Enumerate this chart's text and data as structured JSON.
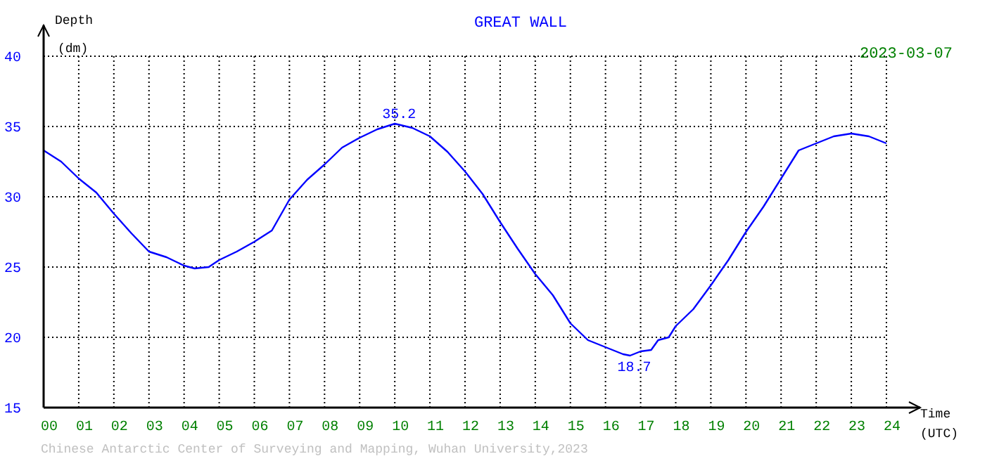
{
  "chart_data": {
    "type": "line",
    "title": "GREAT WALL",
    "subtitle": "2023-03-07",
    "xlabel": "Time (UTC)",
    "ylabel": "Depth (dm)",
    "xlim": [
      0,
      24
    ],
    "xticks": [
      {
        "value": 0,
        "label": "00"
      },
      {
        "value": 1,
        "label": "01"
      },
      {
        "value": 2,
        "label": "02"
      },
      {
        "value": 3,
        "label": "03"
      },
      {
        "value": 4,
        "label": "04"
      },
      {
        "value": 5,
        "label": "05"
      },
      {
        "value": 6,
        "label": "06"
      },
      {
        "value": 7,
        "label": "07"
      },
      {
        "value": 8,
        "label": "08"
      },
      {
        "value": 9,
        "label": "09"
      },
      10,
      11,
      12,
      13,
      14,
      15,
      16,
      17,
      18,
      19,
      20,
      21,
      22,
      23,
      24
    ],
    "ylim": [
      15,
      40
    ],
    "yticks": [
      15,
      20,
      25,
      30,
      35,
      40
    ],
    "grid": true,
    "marker": "none",
    "line_style": "solid",
    "x": [
      0,
      0.5,
      1,
      1.5,
      2,
      2.5,
      3,
      3.5,
      4,
      4.3,
      4.7,
      5,
      5.5,
      6,
      6.5,
      7,
      7.5,
      8,
      8.5,
      9,
      9.5,
      10,
      10.5,
      11,
      11.5,
      12,
      12.5,
      13,
      13.5,
      14,
      14.5,
      15,
      15.5,
      16,
      16.5,
      16.7,
      17,
      17.3,
      17.5,
      17.8,
      18,
      18.5,
      19,
      19.5,
      20,
      20.5,
      21,
      21.5,
      22,
      22.5,
      23,
      23.5,
      24
    ],
    "series": [
      {
        "color": "#0000ff",
        "values": [
          33.3,
          32.5,
          31.3,
          30.3,
          28.8,
          27.4,
          26.1,
          25.7,
          25.1,
          24.9,
          25.0,
          25.5,
          26.1,
          26.8,
          27.6,
          29.8,
          31.2,
          32.3,
          33.5,
          34.2,
          34.8,
          35.2,
          34.9,
          34.3,
          33.2,
          31.8,
          30.2,
          28.2,
          26.3,
          24.5,
          23.0,
          21.0,
          19.8,
          19.3,
          18.8,
          18.7,
          19.0,
          19.1,
          19.8,
          20.0,
          20.8,
          22.0,
          23.7,
          25.5,
          27.5,
          29.3,
          31.3,
          33.3,
          33.8,
          34.3,
          34.5,
          34.3,
          33.8
        ]
      }
    ],
    "annotations": [
      {
        "text": "35.2",
        "x": 10,
        "y": 35.2
      },
      {
        "text": "18.7",
        "x": 16.7,
        "y": 18.7
      },
      "Chinese Antarctic Center of Surveying and Mapping, Wuhan University,2023"
    ]
  }
}
